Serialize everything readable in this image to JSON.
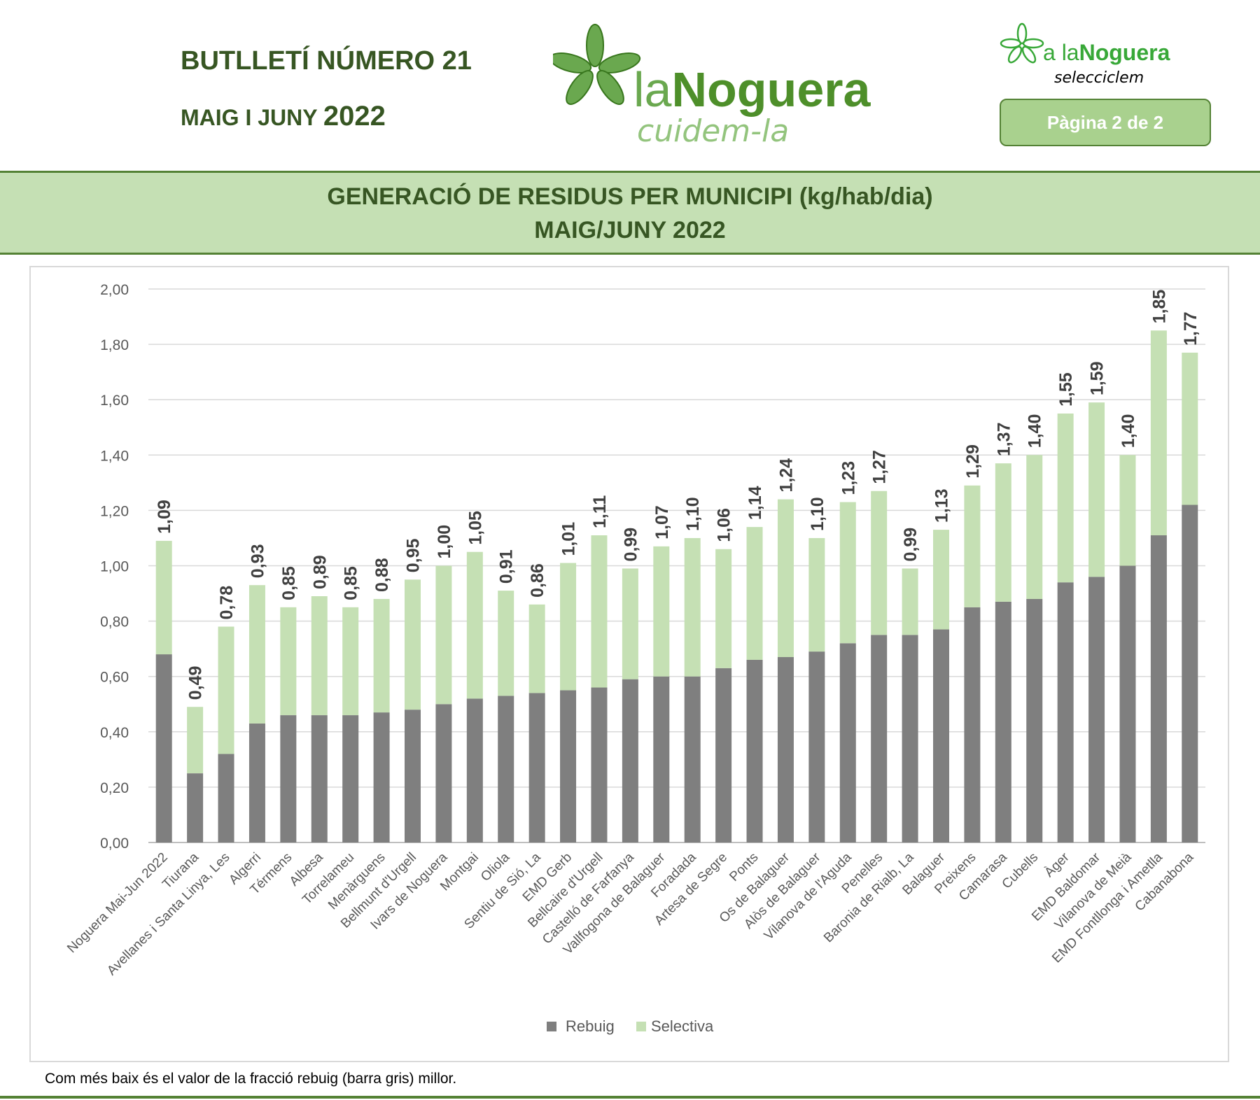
{
  "header": {
    "bulletin_title": "BUTLLETÍ NÚMERO 21",
    "period_months": "MAIG I JUNY",
    "period_year": "2022",
    "logo_main_text": "laNoguera",
    "logo_main_tagline": "cuidem-la",
    "logo_right_text": "a laNoguera",
    "logo_right_tagline": "selecciclem",
    "page_badge": "Pàgina 2 de 2"
  },
  "colors": {
    "rebuig": "#7f7f7f",
    "selectiva": "#c5e0b4",
    "accent": "#548235",
    "title": "#375623"
  },
  "chart_data": {
    "type": "bar",
    "stacked": true,
    "title": "GENERACIÓ DE RESIDUS PER MUNICIPI (kg/hab/dia)",
    "subtitle": "MAIG/JUNY 2022",
    "xlabel": "",
    "ylabel": "",
    "ylim": [
      0,
      2
    ],
    "yticks": [
      "0,00",
      "0,20",
      "0,40",
      "0,60",
      "0,80",
      "1,00",
      "1,20",
      "1,40",
      "1,60",
      "1,80",
      "2,00"
    ],
    "grid": true,
    "legend_position": "bottom",
    "categories": [
      "Noguera Mai-Jun 2022",
      "Tiurana",
      "Avellanes i Santa Linya, Les",
      "Algerri",
      "Térmens",
      "Albesa",
      "Torrelameu",
      "Menàrguens",
      "Bellmunt d'Urgell",
      "Ivars de Noguera",
      "Montgai",
      "Oliola",
      "Sentiu de Sió, La",
      "EMD Gerb",
      "Bellcaire d'Urgell",
      "Castelló de Farfanya",
      "Vallfogona de Balaguer",
      "Foradada",
      "Artesa de Segre",
      "Ponts",
      "Os de Balaguer",
      "Alòs de Balaguer",
      "Vilanova de l'Aguda",
      "Penelles",
      "Baronia de Rialb, La",
      "Balaguer",
      "Preixens",
      "Camarasa",
      "Cubells",
      "Àger",
      "EMD Baldomar",
      "Vilanova de Meià",
      "EMD Fontllonga i Ametlla",
      "Cabanabona"
    ],
    "series": [
      {
        "name": "Rebuig",
        "values": [
          0.68,
          0.25,
          0.32,
          0.43,
          0.46,
          0.46,
          0.46,
          0.47,
          0.48,
          0.5,
          0.52,
          0.53,
          0.54,
          0.55,
          0.56,
          0.59,
          0.6,
          0.6,
          0.63,
          0.66,
          0.67,
          0.69,
          0.72,
          0.75,
          0.75,
          0.77,
          0.85,
          0.87,
          0.88,
          0.94,
          0.96,
          1.0,
          1.11,
          1.22
        ]
      },
      {
        "name": "Selectiva",
        "values": [
          0.41,
          0.24,
          0.46,
          0.5,
          0.39,
          0.43,
          0.39,
          0.41,
          0.47,
          0.5,
          0.53,
          0.38,
          0.32,
          0.46,
          0.55,
          0.4,
          0.47,
          0.5,
          0.43,
          0.48,
          0.57,
          0.41,
          0.51,
          0.52,
          0.24,
          0.36,
          0.44,
          0.5,
          0.52,
          0.61,
          0.63,
          0.4,
          0.74,
          0.55
        ]
      }
    ],
    "totals": [
      1.09,
      0.49,
      0.78,
      0.93,
      0.85,
      0.89,
      0.85,
      0.88,
      0.95,
      1.0,
      1.05,
      0.91,
      0.86,
      1.01,
      1.11,
      0.99,
      1.07,
      1.1,
      1.06,
      1.14,
      1.24,
      1.1,
      1.23,
      1.27,
      0.99,
      1.13,
      1.29,
      1.37,
      1.4,
      1.55,
      1.59,
      1.4,
      1.85,
      1.77
    ],
    "total_labels": [
      "1,09",
      "0,49",
      "0,78",
      "0,93",
      "0,85",
      "0,89",
      "0,85",
      "0,88",
      "0,95",
      "1,00",
      "1,05",
      "0,91",
      "0,86",
      "1,01",
      "1,11",
      "0,99",
      "1,07",
      "1,10",
      "1,06",
      "1,14",
      "1,24",
      "1,10",
      "1,23",
      "1,27",
      "0,99",
      "1,13",
      "1,29",
      "1,37",
      "1,40",
      "1,55",
      "1,59",
      "1,40",
      "1,85",
      "1,77"
    ]
  },
  "footnote": "Com més baix és el valor de la fracció rebuig (barra gris) millor."
}
